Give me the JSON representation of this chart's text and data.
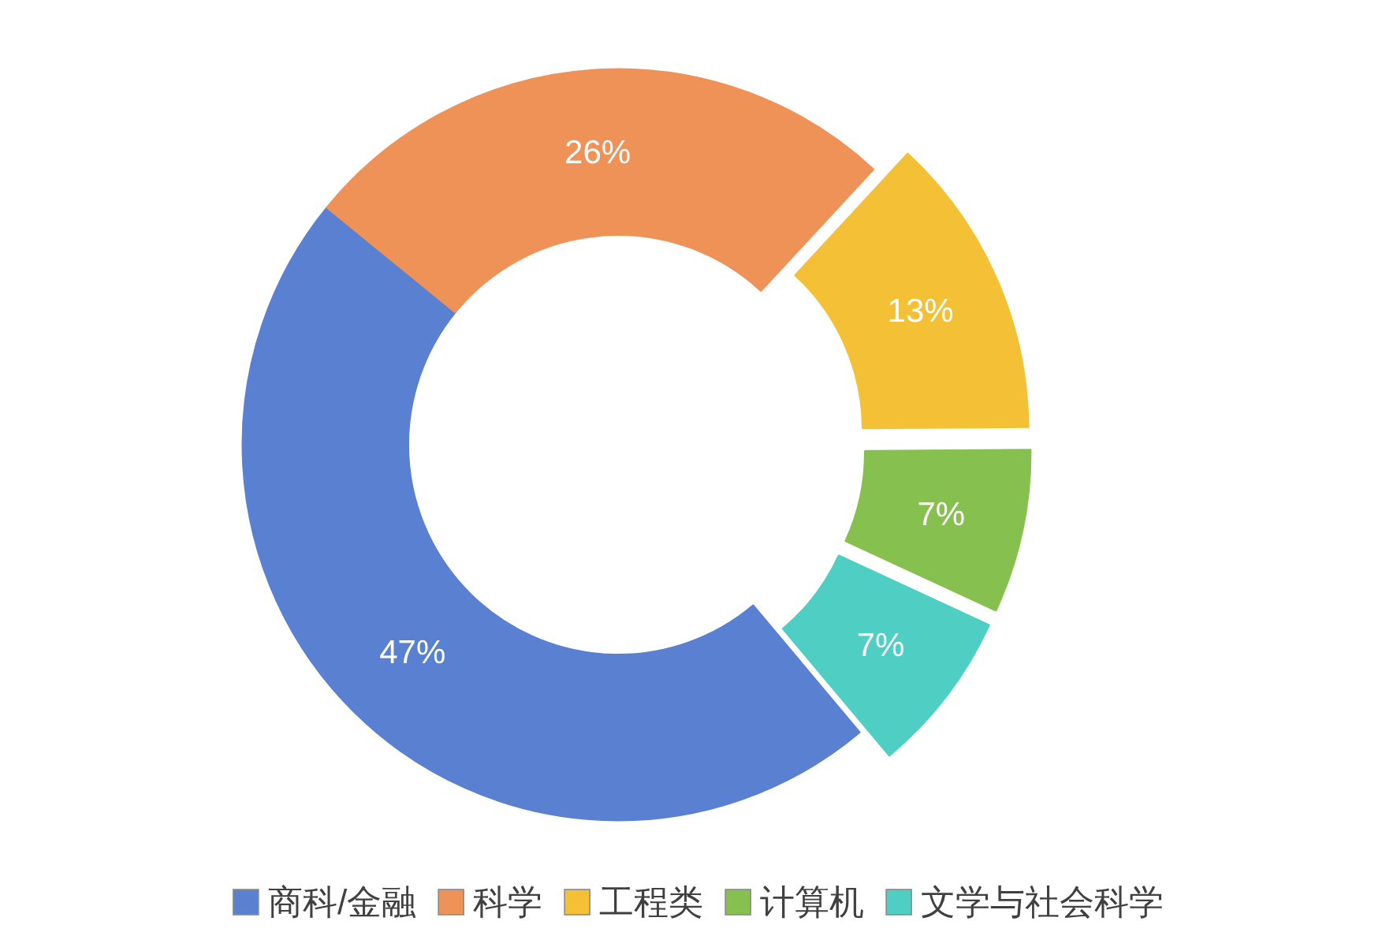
{
  "chart_data": {
    "type": "donut",
    "categories": [
      "商科/金融",
      "科学",
      "工程类",
      "计算机",
      "文学与社会科学"
    ],
    "values": [
      47,
      26,
      13,
      7,
      7
    ],
    "colors": [
      "#5a80d2",
      "#ef9258",
      "#f4c136",
      "#86c04f",
      "#4fcfc3"
    ],
    "value_labels": [
      "47%",
      "26%",
      "13%",
      "7%",
      "7%"
    ],
    "legend": "bottom"
  }
}
